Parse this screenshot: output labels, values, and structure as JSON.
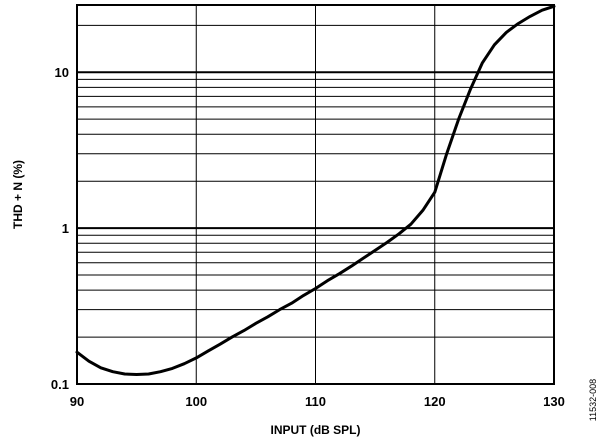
{
  "chart_data": {
    "type": "line",
    "xlabel": "INPUT (dB SPL)",
    "ylabel": "THD + N (%)",
    "xlim": [
      90,
      130
    ],
    "ylim": [
      0.1,
      27
    ],
    "yscale": "log",
    "grid": true,
    "x_ticks": [
      90,
      100,
      110,
      120,
      130
    ],
    "x_tick_labels": [
      "90",
      "100",
      "110",
      "120",
      "130"
    ],
    "y_ticks": [
      0.1,
      1,
      10
    ],
    "y_tick_labels": [
      "0.1",
      "1",
      "10"
    ],
    "series": [
      {
        "x": [
          90,
          91,
          92,
          93,
          94,
          95,
          96,
          97,
          98,
          99,
          100,
          101,
          102,
          103,
          104,
          105,
          106,
          107,
          108,
          109,
          110,
          111,
          112,
          113,
          114,
          115,
          116,
          117,
          118,
          119,
          120,
          121,
          122,
          123,
          124,
          125,
          126,
          127,
          128,
          129,
          130
        ],
        "y": [
          0.16,
          0.14,
          0.127,
          0.12,
          0.116,
          0.115,
          0.116,
          0.12,
          0.126,
          0.135,
          0.147,
          0.163,
          0.18,
          0.2,
          0.22,
          0.245,
          0.27,
          0.3,
          0.33,
          0.37,
          0.41,
          0.46,
          0.51,
          0.57,
          0.64,
          0.72,
          0.81,
          0.92,
          1.06,
          1.3,
          1.7,
          3.0,
          5.0,
          7.8,
          11.5,
          15.0,
          18.0,
          20.5,
          22.8,
          25.0,
          26.5
        ]
      }
    ]
  },
  "figure_id": "11532-008"
}
